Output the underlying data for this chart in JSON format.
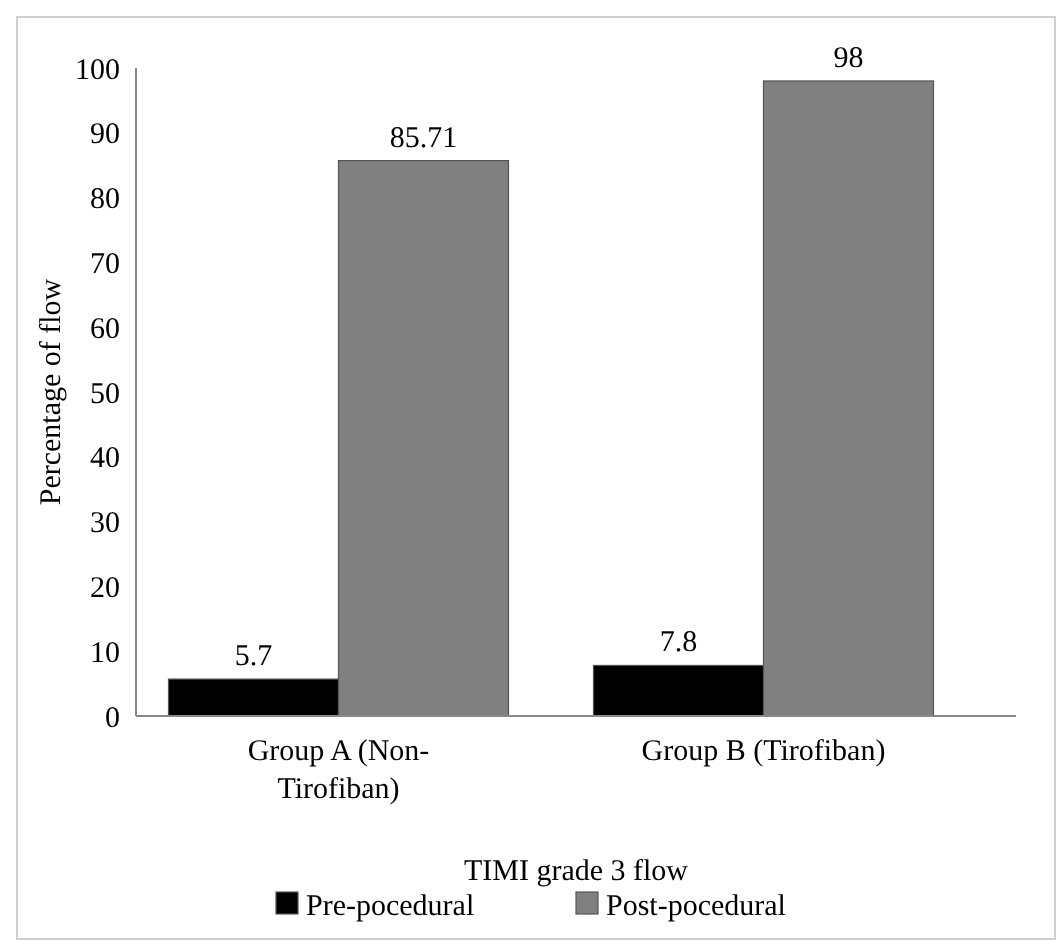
{
  "chart_data": {
    "type": "bar",
    "xlabel": "TIMI grade 3 flow",
    "ylabel": "Percentage of flow",
    "categories": [
      "Group A (Non-Tirofiban)",
      "Group B (Tirofiban)"
    ],
    "series": [
      {
        "name": "Pre-pocedural",
        "color": "#000000",
        "values": [
          5.7,
          7.8
        ]
      },
      {
        "name": "Post-pocedural",
        "color": "#808080",
        "values": [
          85.71,
          98
        ]
      }
    ],
    "ylim": [
      0,
      100
    ],
    "yticks": [
      0,
      10,
      20,
      30,
      40,
      50,
      60,
      70,
      80,
      90,
      100
    ],
    "grid": false,
    "legend": "bottom",
    "data_labels": true
  }
}
